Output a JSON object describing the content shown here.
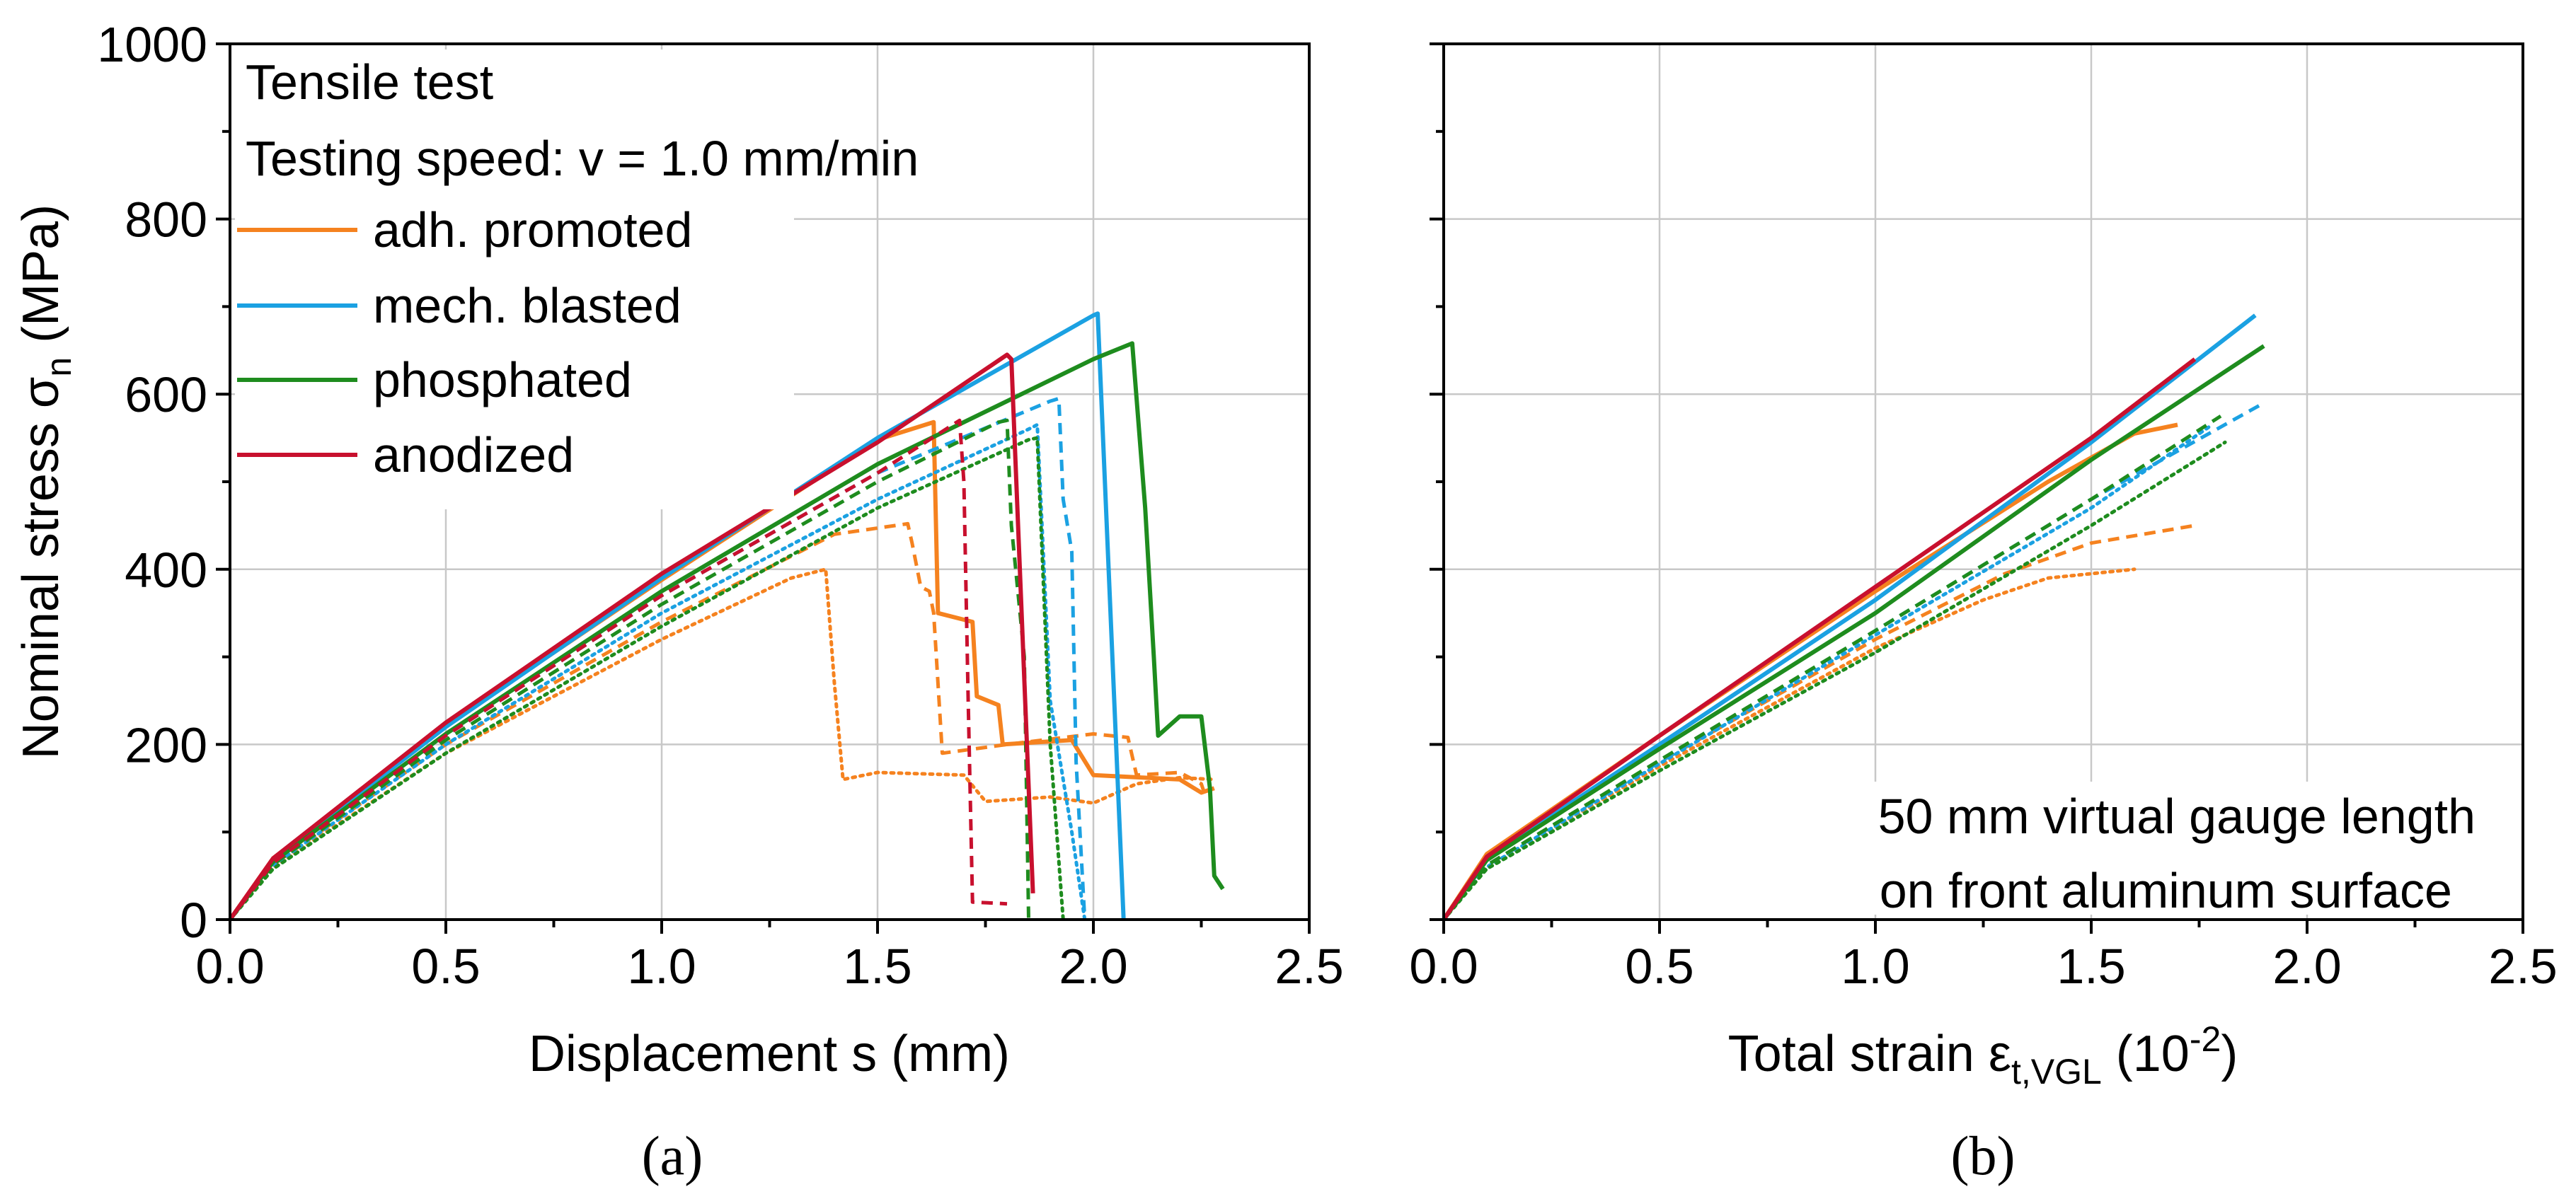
{
  "chart_data": [
    {
      "id": "a",
      "type": "line",
      "caption": "(a)",
      "xlabel": "Displacement s (mm)",
      "ylabel_main": "Nominal stress σ",
      "ylabel_sub": "n",
      "ylabel_end": " (MPa)",
      "xlim": [
        0,
        2.5
      ],
      "ylim": [
        0,
        1000
      ],
      "xticks": [
        "0.0",
        "0.5",
        "1.0",
        "1.5",
        "2.0",
        "2.5"
      ],
      "yticks": [
        "0",
        "200",
        "400",
        "600",
        "800",
        "1000"
      ],
      "grid": true,
      "annotation_title": "Tensile test",
      "annotation_speed": "Testing speed: v = 1.0 mm/min",
      "legend": [
        {
          "label": "adh. promoted",
          "color": "#f5821f"
        },
        {
          "label": "mech. blasted",
          "color": "#1ba1e2"
        },
        {
          "label": "phosphated",
          "color": "#1e8c1e"
        },
        {
          "label": "anodized",
          "color": "#c8102e"
        }
      ],
      "series": [
        {
          "name": "adh. promoted",
          "style": "solid",
          "color": "#f5821f",
          "points": [
            [
              0,
              0
            ],
            [
              0.1,
              70
            ],
            [
              0.5,
              222
            ],
            [
              1.0,
              388
            ],
            [
              1.5,
              548
            ],
            [
              1.63,
              568
            ],
            [
              1.64,
              350
            ],
            [
              1.72,
              340
            ],
            [
              1.73,
              255
            ],
            [
              1.78,
              245
            ],
            [
              1.79,
              200
            ],
            [
              1.95,
              205
            ],
            [
              2.0,
              165
            ],
            [
              2.2,
              160
            ],
            [
              2.25,
              145
            ],
            [
              2.28,
              150
            ]
          ]
        },
        {
          "name": "adh. promoted",
          "style": "dashed",
          "color": "#f5821f",
          "points": [
            [
              0,
              0
            ],
            [
              0.1,
              63
            ],
            [
              0.5,
              200
            ],
            [
              1.0,
              340
            ],
            [
              1.4,
              440
            ],
            [
              1.57,
              452
            ],
            [
              1.58,
              430
            ],
            [
              1.6,
              380
            ],
            [
              1.62,
              375
            ],
            [
              1.63,
              350
            ],
            [
              1.65,
              190
            ],
            [
              1.8,
              200
            ],
            [
              2.0,
              212
            ],
            [
              2.08,
              208
            ],
            [
              2.1,
              165
            ],
            [
              2.2,
              168
            ],
            [
              2.25,
              155
            ],
            [
              2.26,
              140
            ]
          ]
        },
        {
          "name": "adh. promoted",
          "style": "dotted",
          "color": "#f5821f",
          "points": [
            [
              0,
              0
            ],
            [
              0.1,
              60
            ],
            [
              0.5,
              190
            ],
            [
              1.0,
              320
            ],
            [
              1.3,
              390
            ],
            [
              1.38,
              400
            ],
            [
              1.4,
              270
            ],
            [
              1.42,
              160
            ],
            [
              1.5,
              168
            ],
            [
              1.7,
              165
            ],
            [
              1.75,
              135
            ],
            [
              1.9,
              140
            ],
            [
              2.0,
              133
            ],
            [
              2.1,
              155
            ],
            [
              2.2,
              162
            ],
            [
              2.28,
              160
            ]
          ]
        },
        {
          "name": "mech. blasted",
          "style": "solid",
          "color": "#1ba1e2",
          "points": [
            [
              0,
              0
            ],
            [
              0.1,
              68
            ],
            [
              0.5,
              220
            ],
            [
              1.0,
              390
            ],
            [
              1.5,
              550
            ],
            [
              2.0,
              690
            ],
            [
              2.01,
              692
            ],
            [
              2.07,
              0
            ]
          ]
        },
        {
          "name": "mech. blasted",
          "style": "dashed",
          "color": "#1ba1e2",
          "points": [
            [
              0,
              0
            ],
            [
              0.1,
              65
            ],
            [
              0.5,
              210
            ],
            [
              1.0,
              370
            ],
            [
              1.5,
              510
            ],
            [
              1.9,
              592
            ],
            [
              1.92,
              595
            ],
            [
              1.93,
              480
            ],
            [
              1.95,
              420
            ],
            [
              1.96,
              180
            ],
            [
              1.98,
              0
            ]
          ]
        },
        {
          "name": "mech. blasted",
          "style": "dotted",
          "color": "#1ba1e2",
          "points": [
            [
              0,
              0
            ],
            [
              0.1,
              62
            ],
            [
              0.5,
              200
            ],
            [
              1.0,
              350
            ],
            [
              1.5,
              480
            ],
            [
              1.85,
              560
            ],
            [
              1.87,
              565
            ],
            [
              1.9,
              250
            ],
            [
              1.95,
              100
            ],
            [
              1.98,
              0
            ]
          ]
        },
        {
          "name": "phosphated",
          "style": "solid",
          "color": "#1e8c1e",
          "points": [
            [
              0,
              0
            ],
            [
              0.1,
              66
            ],
            [
              0.5,
              212
            ],
            [
              1.0,
              375
            ],
            [
              1.5,
              520
            ],
            [
              2.0,
              640
            ],
            [
              2.09,
              658
            ],
            [
              2.12,
              470
            ],
            [
              2.14,
              300
            ],
            [
              2.15,
              210
            ],
            [
              2.2,
              232
            ],
            [
              2.25,
              232
            ],
            [
              2.27,
              150
            ],
            [
              2.28,
              50
            ],
            [
              2.3,
              35
            ]
          ]
        },
        {
          "name": "phosphated",
          "style": "dashed",
          "color": "#1e8c1e",
          "points": [
            [
              0,
              0
            ],
            [
              0.1,
              63
            ],
            [
              0.5,
              205
            ],
            [
              1.0,
              360
            ],
            [
              1.5,
              500
            ],
            [
              1.78,
              568
            ],
            [
              1.8,
              570
            ],
            [
              1.81,
              450
            ],
            [
              1.84,
              300
            ],
            [
              1.85,
              0
            ]
          ]
        },
        {
          "name": "phosphated",
          "style": "dotted",
          "color": "#1e8c1e",
          "points": [
            [
              0,
              0
            ],
            [
              0.1,
              58
            ],
            [
              0.5,
              190
            ],
            [
              1.0,
              335
            ],
            [
              1.5,
              470
            ],
            [
              1.85,
              548
            ],
            [
              1.87,
              550
            ],
            [
              1.9,
              200
            ],
            [
              1.93,
              0
            ]
          ]
        },
        {
          "name": "anodized",
          "style": "solid",
          "color": "#c8102e",
          "points": [
            [
              0,
              0
            ],
            [
              0.1,
              70
            ],
            [
              0.5,
              225
            ],
            [
              1.0,
              395
            ],
            [
              1.5,
              545
            ],
            [
              1.8,
              645
            ],
            [
              1.81,
              640
            ],
            [
              1.86,
              30
            ]
          ]
        },
        {
          "name": "anodized",
          "style": "dashed",
          "color": "#c8102e",
          "points": [
            [
              0,
              0
            ],
            [
              0.1,
              65
            ],
            [
              0.5,
              210
            ],
            [
              1.0,
              370
            ],
            [
              1.5,
              510
            ],
            [
              1.69,
              570
            ],
            [
              1.7,
              500
            ],
            [
              1.71,
              250
            ],
            [
              1.72,
              20
            ],
            [
              1.8,
              18
            ]
          ]
        }
      ]
    },
    {
      "id": "b",
      "type": "line",
      "caption": "(b)",
      "xlabel_main": "Total strain ε",
      "xlabel_sub": "t,VGL",
      "xlabel_end": " (10",
      "xlabel_sup": "-2",
      "xlabel_close": ")",
      "xlim": [
        0,
        2.5
      ],
      "ylim": [
        0,
        1000
      ],
      "xticks": [
        "0.0",
        "0.5",
        "1.0",
        "1.5",
        "2.0",
        "2.5"
      ],
      "grid": true,
      "annotation_line1": "50 mm virtual gauge length",
      "annotation_line2": "on front aluminum surface",
      "series": [
        {
          "name": "adh. promoted",
          "style": "solid",
          "color": "#f5821f",
          "points": [
            [
              0,
              0
            ],
            [
              0.1,
              75
            ],
            [
              0.5,
              210
            ],
            [
              1.0,
              375
            ],
            [
              1.4,
              500
            ],
            [
              1.6,
              555
            ],
            [
              1.7,
              565
            ]
          ]
        },
        {
          "name": "adh. promoted",
          "style": "dashed",
          "color": "#f5821f",
          "points": [
            [
              0,
              0
            ],
            [
              0.1,
              62
            ],
            [
              0.5,
              180
            ],
            [
              1.0,
              320
            ],
            [
              1.3,
              395
            ],
            [
              1.5,
              430
            ],
            [
              1.74,
              450
            ]
          ]
        },
        {
          "name": "adh. promoted",
          "style": "dotted",
          "color": "#f5821f",
          "points": [
            [
              0,
              0
            ],
            [
              0.1,
              60
            ],
            [
              0.5,
              175
            ],
            [
              1.0,
              310
            ],
            [
              1.25,
              365
            ],
            [
              1.4,
              390
            ],
            [
              1.6,
              400
            ]
          ]
        },
        {
          "name": "mech. blasted",
          "style": "solid",
          "color": "#1ba1e2",
          "points": [
            [
              0,
              0
            ],
            [
              0.1,
              70
            ],
            [
              0.5,
              200
            ],
            [
              1.0,
              365
            ],
            [
              1.5,
              545
            ],
            [
              1.88,
              690
            ]
          ]
        },
        {
          "name": "mech. blasted",
          "style": "dashed",
          "color": "#1ba1e2",
          "points": [
            [
              0,
              0
            ],
            [
              0.1,
              62
            ],
            [
              0.5,
              180
            ],
            [
              1.0,
              330
            ],
            [
              1.5,
              480
            ],
            [
              1.9,
              590
            ]
          ]
        },
        {
          "name": "mech. blasted",
          "style": "dotted",
          "color": "#1ba1e2",
          "points": [
            [
              0,
              0
            ],
            [
              0.1,
              60
            ],
            [
              0.5,
              178
            ],
            [
              1.0,
              325
            ],
            [
              1.5,
              470
            ],
            [
              1.78,
              565
            ]
          ]
        },
        {
          "name": "phosphated",
          "style": "solid",
          "color": "#1e8c1e",
          "points": [
            [
              0,
              0
            ],
            [
              0.1,
              68
            ],
            [
              0.5,
              195
            ],
            [
              1.0,
              350
            ],
            [
              1.5,
              525
            ],
            [
              1.9,
              655
            ]
          ]
        },
        {
          "name": "phosphated",
          "style": "dashed",
          "color": "#1e8c1e",
          "points": [
            [
              0,
              0
            ],
            [
              0.1,
              62
            ],
            [
              0.5,
              182
            ],
            [
              1.0,
              330
            ],
            [
              1.5,
              480
            ],
            [
              1.8,
              575
            ]
          ]
        },
        {
          "name": "phosphated",
          "style": "dotted",
          "color": "#1e8c1e",
          "points": [
            [
              0,
              0
            ],
            [
              0.1,
              58
            ],
            [
              0.5,
              170
            ],
            [
              1.0,
              305
            ],
            [
              1.5,
              450
            ],
            [
              1.81,
              545
            ]
          ]
        },
        {
          "name": "anodized",
          "style": "solid",
          "color": "#c8102e",
          "points": [
            [
              0,
              0
            ],
            [
              0.1,
              72
            ],
            [
              0.5,
              210
            ],
            [
              1.0,
              380
            ],
            [
              1.5,
              550
            ],
            [
              1.74,
              640
            ]
          ]
        }
      ]
    }
  ]
}
